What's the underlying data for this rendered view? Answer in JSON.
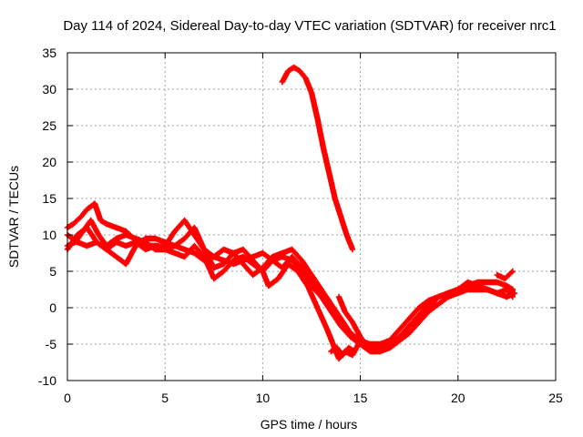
{
  "chart_data": {
    "type": "scatter",
    "title": "Day 114 of 2024, Sidereal Day-to-day VTEC variation (SDTVAR) for receiver nrc1",
    "xlabel": "GPS time / hours",
    "ylabel": "SDTVAR / TECUs",
    "xlim": [
      0,
      25
    ],
    "ylim": [
      -10,
      35
    ],
    "xticks": [
      0,
      5,
      10,
      15,
      20,
      25
    ],
    "yticks": [
      -10,
      -5,
      0,
      5,
      10,
      15,
      20,
      25,
      30,
      35
    ],
    "grid": true,
    "legend": "none",
    "marker": "+",
    "series_color": "#ff0000",
    "series": [
      {
        "name": "track-1",
        "x": [
          0.0,
          0.3,
          0.7,
          1.0,
          1.4,
          1.7,
          2.0,
          2.5,
          3.0,
          3.4,
          3.8,
          4.2,
          4.6,
          5.0,
          5.5,
          6.0,
          6.5,
          7.0,
          7.5,
          8.0,
          8.5,
          9.0,
          9.5,
          10.0,
          10.5,
          11.0,
          11.5,
          12.0,
          12.5,
          13.0,
          13.5,
          14.0,
          14.5,
          15.0,
          15.5,
          16.0,
          16.5,
          17.0,
          17.5,
          18.0,
          18.5,
          19.0,
          19.5,
          20.0,
          20.5,
          21.0,
          21.5,
          22.0,
          22.5,
          22.8
        ],
        "y": [
          11.0,
          11.5,
          12.5,
          13.5,
          14.3,
          12.0,
          11.5,
          11.0,
          10.5,
          9.5,
          9.0,
          8.5,
          8.5,
          8.5,
          10.5,
          12.0,
          10.0,
          8.0,
          7.0,
          6.5,
          6.0,
          6.5,
          7.0,
          7.5,
          6.5,
          5.5,
          7.0,
          5.5,
          3.5,
          1.5,
          -0.5,
          -2.5,
          -4.0,
          -5.0,
          -5.0,
          -5.0,
          -4.5,
          -3.0,
          -1.5,
          0.0,
          1.0,
          1.5,
          2.0,
          2.5,
          3.0,
          3.5,
          3.5,
          3.5,
          3.0,
          2.5
        ]
      },
      {
        "name": "track-2",
        "x": [
          0.0,
          0.4,
          0.8,
          1.2,
          1.6,
          2.0,
          2.5,
          3.0,
          3.5,
          4.0,
          4.5,
          5.0,
          5.5,
          6.0,
          6.5,
          7.0,
          7.5,
          8.0,
          8.5,
          9.0,
          9.5,
          10.0,
          10.5,
          11.0,
          11.5,
          12.0,
          12.5,
          13.0,
          13.5,
          14.0,
          14.5,
          15.0,
          15.5,
          16.0,
          16.5,
          17.0,
          17.5,
          18.0,
          18.5,
          19.0,
          19.5,
          20.0,
          20.5,
          21.0,
          21.5,
          22.0,
          22.5,
          22.9
        ],
        "y": [
          8.5,
          9.0,
          10.5,
          12.0,
          10.0,
          8.5,
          9.5,
          10.0,
          9.5,
          9.0,
          8.0,
          8.0,
          8.5,
          9.5,
          11.0,
          8.0,
          5.5,
          6.0,
          7.5,
          8.0,
          6.5,
          5.0,
          6.5,
          7.0,
          6.5,
          5.0,
          3.0,
          1.5,
          0.0,
          -2.0,
          -3.5,
          -4.5,
          -5.0,
          -5.5,
          -5.0,
          -4.0,
          -2.5,
          -1.0,
          0.5,
          1.5,
          2.0,
          2.5,
          3.0,
          3.0,
          2.5,
          2.0,
          1.5,
          2.0
        ]
      },
      {
        "name": "track-3",
        "x": [
          0.0,
          0.5,
          1.0,
          1.5,
          2.0,
          2.5,
          3.0,
          3.5,
          4.0,
          4.5,
          5.0,
          5.5,
          6.0,
          6.5,
          7.0,
          7.5,
          8.0,
          8.5,
          9.0,
          9.5,
          10.0,
          10.5,
          11.0,
          11.5,
          12.0,
          12.5,
          13.0,
          13.5,
          14.0,
          14.5,
          15.0,
          15.5,
          16.0,
          16.5,
          17.0,
          17.5,
          18.0,
          18.5,
          19.0,
          19.5,
          20.0,
          20.5,
          21.0,
          21.5,
          22.0,
          22.5,
          22.8
        ],
        "y": [
          10.0,
          9.0,
          8.5,
          9.0,
          8.0,
          7.0,
          6.0,
          8.5,
          9.5,
          9.5,
          9.0,
          8.5,
          8.0,
          7.5,
          6.5,
          7.0,
          8.0,
          7.5,
          6.0,
          4.5,
          5.5,
          7.0,
          7.5,
          8.0,
          6.5,
          4.5,
          2.5,
          0.5,
          -1.5,
          -3.5,
          -5.0,
          -6.0,
          -6.0,
          -5.5,
          -4.5,
          -3.5,
          -2.0,
          -0.5,
          0.5,
          1.5,
          2.0,
          2.5,
          2.5,
          2.5,
          2.0,
          1.5,
          2.5
        ]
      },
      {
        "name": "track-4",
        "x": [
          0.0,
          0.5,
          1.0,
          1.5,
          2.0,
          2.5,
          3.0,
          3.5,
          4.0,
          4.5,
          5.0,
          5.5,
          6.0,
          6.5,
          7.0,
          7.5,
          8.0,
          8.5,
          9.0,
          9.5,
          10.0,
          10.3,
          10.8,
          11.3,
          11.8,
          12.3,
          12.8,
          13.3,
          13.6,
          13.9,
          14.2,
          14.6,
          15.0,
          15.5,
          16.0,
          16.5,
          17.0,
          17.5,
          18.0,
          18.5,
          19.0,
          19.5,
          20.0,
          20.5,
          21.0,
          21.5,
          22.0,
          22.5,
          22.8
        ],
        "y": [
          8.0,
          10.0,
          11.0,
          9.0,
          8.0,
          9.0,
          8.5,
          9.0,
          8.0,
          8.5,
          8.0,
          7.5,
          7.0,
          8.5,
          7.0,
          4.0,
          5.0,
          6.5,
          7.0,
          6.0,
          5.0,
          3.0,
          4.0,
          6.0,
          5.0,
          3.0,
          0.0,
          -3.0,
          -5.0,
          -7.0,
          -6.0,
          -6.5,
          -4.5,
          -5.5,
          -6.0,
          -5.5,
          -4.5,
          -2.5,
          -1.5,
          0.0,
          1.5,
          2.0,
          2.5,
          3.5,
          3.0,
          2.5,
          2.0,
          2.5,
          1.5
        ]
      },
      {
        "name": "track-5",
        "x": [
          13.9,
          14.2,
          14.6,
          15.0,
          15.4
        ],
        "y": [
          1.5,
          -0.5,
          -2.0,
          -4.0,
          -5.5
        ]
      },
      {
        "name": "track-6",
        "x": [
          13.5,
          13.8,
          14.1,
          14.4,
          14.7
        ],
        "y": [
          -6.0,
          -5.5,
          -6.5,
          -5.5,
          -6.0
        ]
      },
      {
        "name": "track-7",
        "x": [
          22.0,
          22.4,
          22.8
        ],
        "y": [
          4.5,
          4.0,
          5.0
        ]
      },
      {
        "name": "track-high",
        "x": [
          11.0,
          11.3,
          11.6,
          11.9,
          12.2,
          12.5,
          12.8,
          13.1,
          13.4,
          13.7,
          14.0,
          14.3,
          14.6
        ],
        "y": [
          31.0,
          32.5,
          33.0,
          32.5,
          31.5,
          29.5,
          26.0,
          22.0,
          18.5,
          15.0,
          12.5,
          10.0,
          8.0
        ]
      }
    ]
  }
}
